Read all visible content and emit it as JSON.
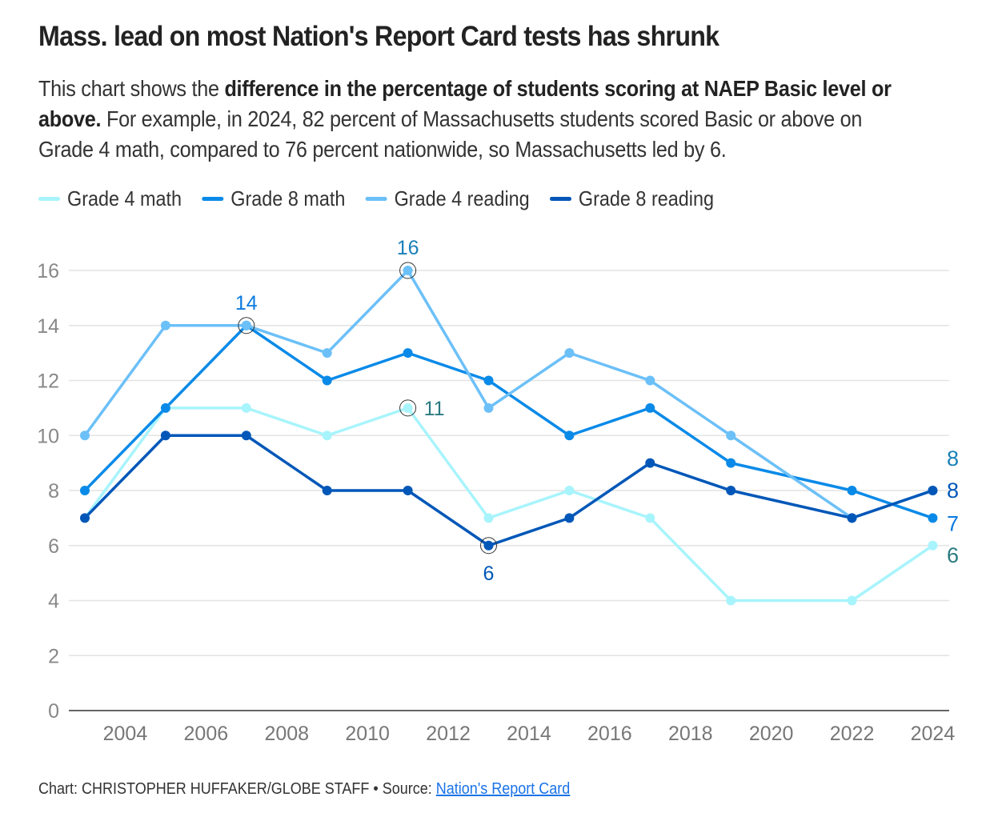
{
  "chart_data": {
    "type": "line",
    "title": "Mass. lead on most Nation's Report Card tests has shrunk",
    "subtitle_pre": "This chart shows the ",
    "subtitle_bold": "difference in the percentage of students scoring at NAEP Basic level or above.",
    "subtitle_post": " For example, in 2024, 82 percent of Massachusetts students scored Basic or above on Grade 4 math, compared to 76 percent nationwide, so Massachusetts led by 6.",
    "x": [
      2003,
      2005,
      2007,
      2009,
      2011,
      2013,
      2015,
      2017,
      2019,
      2022,
      2024
    ],
    "xticks": [
      2004,
      2006,
      2008,
      2010,
      2012,
      2014,
      2016,
      2018,
      2020,
      2022,
      2024
    ],
    "yticks": [
      0,
      2,
      4,
      6,
      8,
      10,
      12,
      14,
      16
    ],
    "ylim": [
      0,
      16
    ],
    "xlim": [
      2002.6,
      2024.4
    ],
    "grid": true,
    "legend_position": "top-left",
    "series": [
      {
        "name": "Grade 4 math",
        "color": "#a8f4fc",
        "label_color": "#2b7a80",
        "values": [
          7,
          11,
          11,
          10,
          11,
          7,
          8,
          7,
          4,
          4,
          6
        ]
      },
      {
        "name": "Grade 8 math",
        "color": "#0a8ae8",
        "label_color": "#0a7ae0",
        "values": [
          8,
          11,
          14,
          12,
          13,
          12,
          10,
          11,
          9,
          8,
          7
        ]
      },
      {
        "name": "Grade 4 reading",
        "color": "#6cc0f8",
        "label_color": "#1a80b8",
        "values": [
          10,
          14,
          14,
          13,
          16,
          11,
          13,
          12,
          10,
          7,
          8
        ]
      },
      {
        "name": "Grade 8 reading",
        "color": "#0057b8",
        "label_color": "#0057b8",
        "values": [
          7,
          10,
          10,
          8,
          8,
          6,
          7,
          9,
          8,
          7,
          8
        ]
      }
    ],
    "annotations": [
      {
        "series": 1,
        "x": 2007,
        "value": 14,
        "text": "14",
        "pos": "above"
      },
      {
        "series": 2,
        "x": 2011,
        "value": 16,
        "text": "16",
        "pos": "above"
      },
      {
        "series": 0,
        "x": 2011,
        "value": 11,
        "text": "11",
        "pos": "right"
      },
      {
        "series": 3,
        "x": 2013,
        "value": 6,
        "text": "6",
        "pos": "below"
      }
    ],
    "end_labels": [
      {
        "series": 2,
        "text": "8"
      },
      {
        "series": 3,
        "text": "8"
      },
      {
        "series": 1,
        "text": "7"
      },
      {
        "series": 0,
        "text": "6"
      }
    ]
  },
  "footer": {
    "credit": "Chart: CHRISTOPHER HUFFAKER/GLOBE STAFF",
    "sep": "•",
    "source_label": "Source:",
    "source_link": "Nation's Report Card"
  }
}
